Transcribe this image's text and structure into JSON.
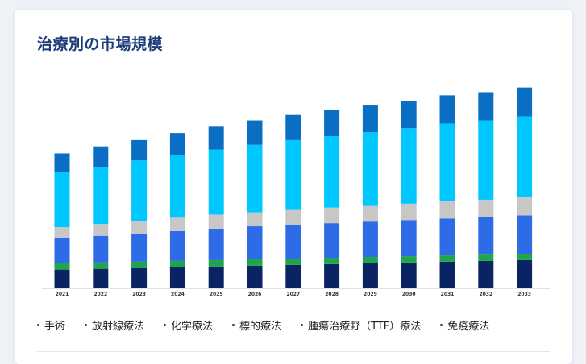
{
  "page": {
    "title": "治療別の市場規模"
  },
  "colors": {
    "手術": "#0a2463",
    "放射線療法": "#1fa64a",
    "化学療法": "#2e6be6",
    "標的療法": "#c7c7c7",
    "腫瘍治療野（TTF）療法": "#00c8ff",
    "免疫療法": "#0a6fc2"
  },
  "chart_data": {
    "type": "bar",
    "stacked": true,
    "title": "治療別の市場規模",
    "xlabel": "",
    "ylabel": "",
    "ylim": [
      0,
      270
    ],
    "categories": [
      "2021",
      "2022",
      "2023",
      "2024",
      "2025",
      "2026",
      "2027",
      "2028",
      "2029",
      "2030",
      "2031",
      "2032",
      "2033"
    ],
    "series": [
      {
        "name": "手術",
        "values": [
          24,
          25,
          26,
          27,
          28,
          29,
          30,
          31,
          32,
          33,
          34,
          35,
          36
        ]
      },
      {
        "name": "放射線療法",
        "values": [
          8,
          8,
          8,
          8,
          8,
          8,
          8,
          8,
          8,
          8,
          8,
          8,
          8
        ]
      },
      {
        "name": "化学療法",
        "values": [
          32,
          34,
          36,
          38,
          40,
          42,
          43,
          44,
          45,
          46,
          47,
          48,
          49
        ]
      },
      {
        "name": "標的療法",
        "values": [
          14,
          15,
          16,
          17,
          18,
          18,
          19,
          20,
          20,
          21,
          22,
          22,
          23
        ]
      },
      {
        "name": "腫瘍治療野（TTF）療法",
        "values": [
          70,
          73,
          77,
          80,
          83,
          86,
          89,
          91,
          94,
          96,
          99,
          101,
          103
        ]
      },
      {
        "name": "免疫療法",
        "values": [
          24,
          26,
          26,
          28,
          29,
          31,
          32,
          33,
          34,
          35,
          36,
          36,
          37
        ]
      }
    ],
    "grid": false,
    "legend_position": "bottom"
  }
}
